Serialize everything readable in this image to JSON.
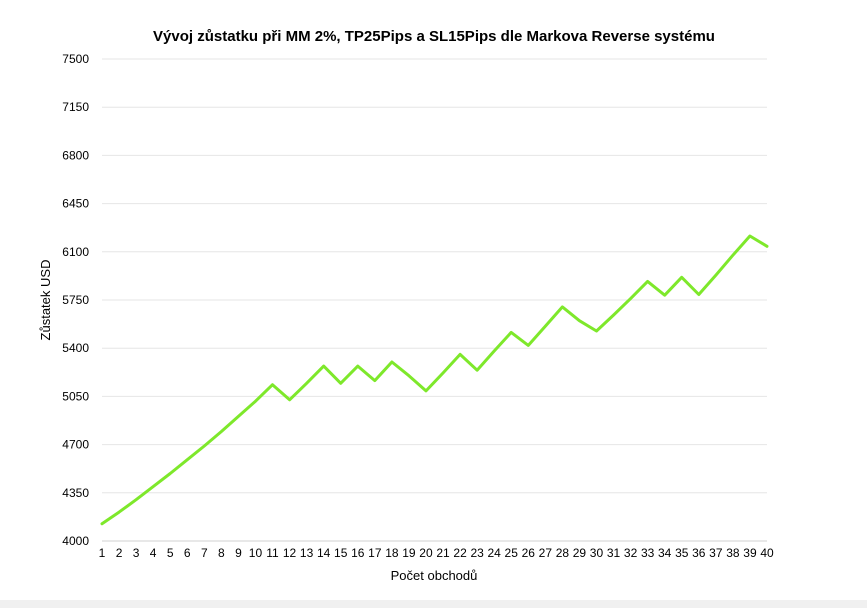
{
  "chart_data": {
    "type": "line",
    "title": "Vývoj zůstatku při MM 2%, TP25Pips a SL15Pips dle Markova Reverse systému",
    "xlabel": "Počet obchodů",
    "ylabel": "Zůstatek USD",
    "x": [
      1,
      2,
      3,
      4,
      5,
      6,
      7,
      8,
      9,
      10,
      11,
      12,
      13,
      14,
      15,
      16,
      17,
      18,
      19,
      20,
      21,
      22,
      23,
      24,
      25,
      26,
      27,
      28,
      29,
      30,
      31,
      32,
      33,
      34,
      35,
      36,
      37,
      38,
      39,
      40
    ],
    "series": [
      {
        "name": "",
        "color": "#7ee82b",
        "values": [
          4125,
          4210,
          4300,
          4395,
          4490,
          4590,
          4690,
          4795,
          4905,
          5015,
          5135,
          5025,
          5145,
          5270,
          5145,
          5270,
          5165,
          5300,
          5200,
          5090,
          5220,
          5355,
          5240,
          5380,
          5515,
          5420,
          5560,
          5700,
          5600,
          5525,
          5640,
          5760,
          5885,
          5785,
          5915,
          5790,
          5930,
          6075,
          6215,
          6140
        ]
      }
    ],
    "yticks": [
      "7500",
      "7150",
      "6800",
      "6450",
      "6100",
      "5750",
      "5400",
      "5050",
      "4700",
      "4350",
      "4000"
    ],
    "xticks": [
      "1",
      "2",
      "3",
      "4",
      "5",
      "6",
      "7",
      "8",
      "9",
      "10",
      "11",
      "12",
      "13",
      "14",
      "15",
      "16",
      "17",
      "18",
      "19",
      "20",
      "21",
      "22",
      "23",
      "24",
      "25",
      "26",
      "27",
      "28",
      "29",
      "30",
      "31",
      "32",
      "33",
      "34",
      "35",
      "36",
      "37",
      "38",
      "39",
      "40"
    ],
    "ylim": [
      4000,
      7500
    ],
    "grid": "horizontal",
    "legend": "none"
  }
}
